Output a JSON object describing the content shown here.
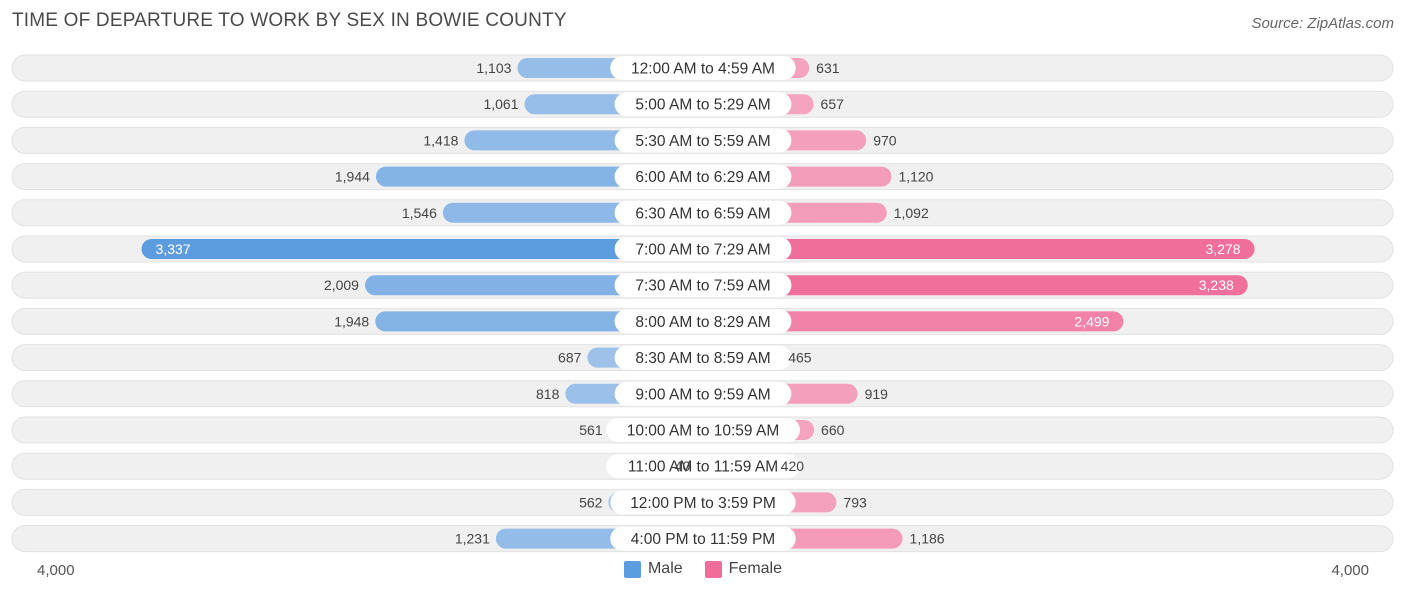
{
  "title": "TIME OF DEPARTURE TO WORK BY SEX IN BOWIE COUNTY",
  "source": "Source: ZipAtlas.com",
  "colors": {
    "male_light": "#a4c5ea",
    "male_dark": "#5c9de0",
    "female_light": "#f5a8c2",
    "female_dark": "#f06d99",
    "row_bg": "#f0f0f0"
  },
  "legend": {
    "male": "Male",
    "female": "Female"
  },
  "axis": {
    "left_label": "4,000",
    "right_label": "4,000"
  },
  "chart_data": {
    "type": "bar",
    "orientation": "horizontal-diverging",
    "categories": [
      "12:00 AM to 4:59 AM",
      "5:00 AM to 5:29 AM",
      "5:30 AM to 5:59 AM",
      "6:00 AM to 6:29 AM",
      "6:30 AM to 6:59 AM",
      "7:00 AM to 7:29 AM",
      "7:30 AM to 7:59 AM",
      "8:00 AM to 8:29 AM",
      "8:30 AM to 8:59 AM",
      "9:00 AM to 9:59 AM",
      "10:00 AM to 10:59 AM",
      "11:00 AM to 11:59 AM",
      "12:00 PM to 3:59 PM",
      "4:00 PM to 11:59 PM"
    ],
    "series": [
      {
        "name": "Male",
        "values": [
          1103,
          1061,
          1418,
          1944,
          1546,
          3337,
          2009,
          1948,
          687,
          818,
          561,
          40,
          562,
          1231
        ],
        "labels": [
          "1,103",
          "1,061",
          "1,418",
          "1,944",
          "1,546",
          "3,337",
          "2,009",
          "1,948",
          "687",
          "818",
          "561",
          "40",
          "562",
          "1,231"
        ]
      },
      {
        "name": "Female",
        "values": [
          631,
          657,
          970,
          1120,
          1092,
          3278,
          3238,
          2499,
          465,
          919,
          660,
          420,
          793,
          1186
        ],
        "labels": [
          "631",
          "657",
          "970",
          "1,120",
          "1,092",
          "3,278",
          "3,238",
          "2,499",
          "465",
          "919",
          "660",
          "420",
          "793",
          "1,186"
        ]
      }
    ],
    "xlim": [
      0,
      4000
    ],
    "legend_position": "bottom-center"
  }
}
